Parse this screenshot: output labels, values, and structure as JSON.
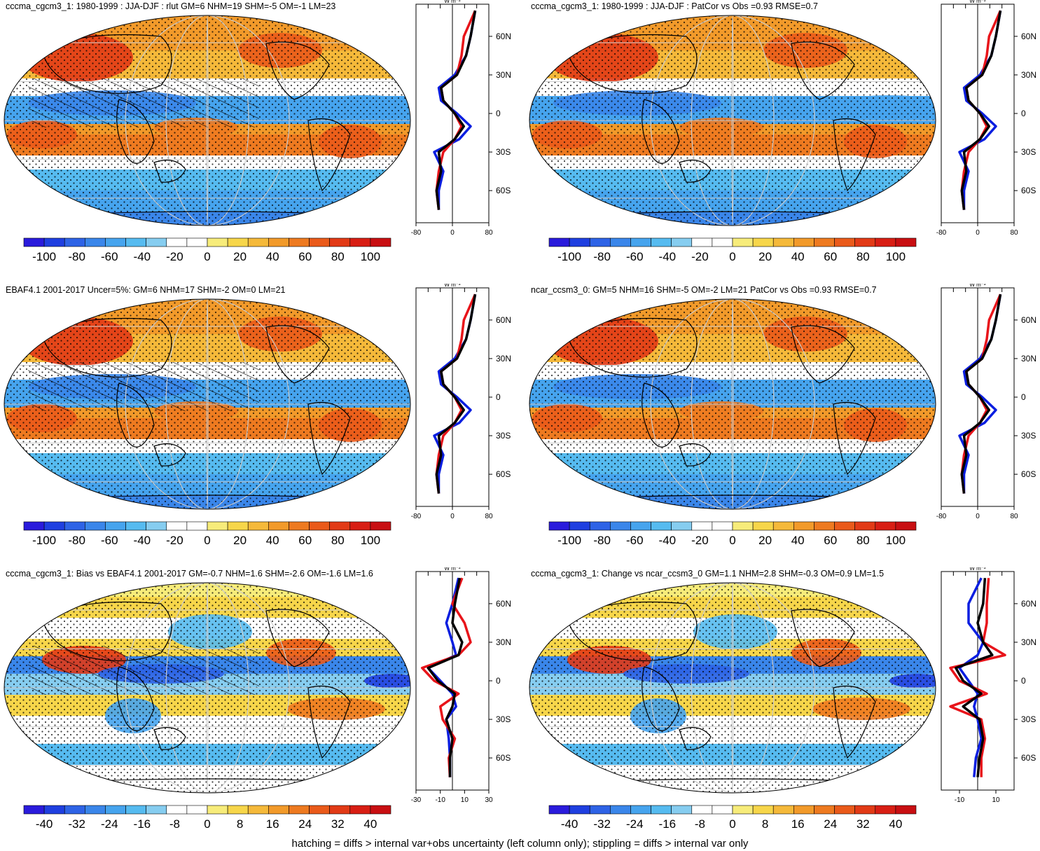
{
  "panels": [
    {
      "title": "cccma_cgcm3_1: 1980-1999 : JJA-DJF : rlut GM=6 NHM=19 SHM=-5 OM=-1 LM=23",
      "colorbar_ticks": [
        "-100",
        "-80",
        "-60",
        "-40",
        "-20",
        "0",
        "20",
        "40",
        "60",
        "80",
        "100"
      ],
      "profile_ticks": [
        "-80",
        "0",
        "80"
      ],
      "hatch": true
    },
    {
      "title": "cccma_cgcm3_1: 1980-1999 : JJA-DJF : PatCor vs Obs =0.93 RMSE=0.7",
      "colorbar_ticks": [
        "-100",
        "-80",
        "-60",
        "-40",
        "-20",
        "0",
        "20",
        "40",
        "60",
        "80",
        "100"
      ],
      "profile_ticks": [
        "-80",
        "0",
        "80"
      ],
      "hatch": false
    },
    {
      "title": "EBAF4.1 2001-2017 Uncer=5%: GM=6 NHM=17 SHM=-2 OM=0 LM=21",
      "colorbar_ticks": [
        "-100",
        "-80",
        "-60",
        "-40",
        "-20",
        "0",
        "20",
        "40",
        "60",
        "80",
        "100"
      ],
      "profile_ticks": [
        "-80",
        "0",
        "80"
      ],
      "hatch": true
    },
    {
      "title": "ncar_ccsm3_0: GM=5 NHM=16 SHM=-5 OM=-2 LM=21 PatCor vs Obs =0.93 RMSE=0.7",
      "colorbar_ticks": [
        "-100",
        "-80",
        "-60",
        "-40",
        "-20",
        "0",
        "20",
        "40",
        "60",
        "80",
        "100"
      ],
      "profile_ticks": [
        "-80",
        "0",
        "80"
      ],
      "hatch": false
    },
    {
      "title": "cccma_cgcm3_1: Bias vs EBAF4.1 2001-2017 GM=-0.7 NHM=1.6 SHM=-2.6 OM=-1.6 LM=1.6",
      "colorbar_ticks": [
        "-40",
        "-32",
        "-24",
        "-16",
        "-8",
        "0",
        "8",
        "16",
        "24",
        "32",
        "40"
      ],
      "profile_ticks": [
        "-30",
        "-10",
        "10",
        "30"
      ],
      "hatch": true
    },
    {
      "title": "cccma_cgcm3_1: Change vs ncar_ccsm3_0 GM=1.1 NHM=2.8 SHM=-0.3 OM=0.9 LM=1.5",
      "colorbar_ticks": [
        "-40",
        "-32",
        "-24",
        "-16",
        "-8",
        "0",
        "8",
        "16",
        "24",
        "32",
        "40"
      ],
      "profile_ticks": [
        "-10",
        "10"
      ],
      "hatch": false
    }
  ],
  "profile_unit": "W m⁻²",
  "lat_ticks": [
    "60N",
    "30N",
    "0",
    "30S",
    "60S"
  ],
  "footer": "hatching = diffs > internal var+obs uncertainty (left column only); stippling = diffs > internal var only",
  "colors": {
    "palette": [
      "#2a1bdc",
      "#1f3fe0",
      "#2e63e6",
      "#3a86ea",
      "#46a4ee",
      "#56bbf0",
      "#86cdf0",
      "#ffffff",
      "#ffffff",
      "#f7ec7a",
      "#f7d64a",
      "#f5b93a",
      "#f29a2a",
      "#ee7a20",
      "#ea5a1a",
      "#e23a16",
      "#d81e14",
      "#c80f12"
    ],
    "obs_line": "#0a1ee0",
    "model_line": "#e8141a",
    "ref_line": "#000000"
  },
  "chart_data": [
    {
      "type": "heatmap",
      "title": "cccma_cgcm3_1: 1980-1999 : JJA-DJF : rlut GM=6 NHM=19 SHM=-5 OM=-1 LM=23",
      "colorbar_range": [
        -100,
        100
      ],
      "zonal_mean_profile": {
        "lat": [
          80,
          60,
          45,
          30,
          20,
          10,
          0,
          -10,
          -20,
          -30,
          -45,
          -60,
          -75
        ],
        "series": [
          {
            "values": [
              50,
              40,
              30,
              5,
              -30,
              -25,
              10,
              40,
              15,
              -40,
              -20,
              -30,
              -30
            ]
          },
          {
            "values": [
              50,
              25,
              20,
              10,
              -25,
              -20,
              5,
              20,
              5,
              -20,
              -30,
              -35,
              -30
            ]
          },
          {
            "values": [
              50,
              40,
              30,
              10,
              -25,
              -20,
              5,
              25,
              5,
              -30,
              -25,
              -35,
              -30
            ]
          }
        ],
        "xlim": [
          -80,
          80
        ]
      }
    },
    {
      "type": "heatmap",
      "title": "cccma_cgcm3_1: 1980-1999 : JJA-DJF : PatCor vs Obs =0.93 RMSE=0.7",
      "colorbar_range": [
        -100,
        100
      ],
      "zonal_mean_profile": {
        "lat": [
          80,
          60,
          45,
          30,
          20,
          10,
          0,
          -10,
          -20,
          -30,
          -45,
          -60,
          -75
        ],
        "series": [
          {
            "values": [
              50,
              40,
              30,
              5,
              -30,
              -25,
              10,
              40,
              15,
              -40,
              -20,
              -30,
              -30
            ]
          },
          {
            "values": [
              50,
              25,
              20,
              10,
              -25,
              -20,
              5,
              20,
              5,
              -20,
              -30,
              -35,
              -30
            ]
          },
          {
            "values": [
              50,
              40,
              30,
              10,
              -25,
              -20,
              5,
              25,
              5,
              -30,
              -25,
              -35,
              -30
            ]
          }
        ],
        "xlim": [
          -80,
          80
        ]
      }
    },
    {
      "type": "heatmap",
      "title": "EBAF4.1 2001-2017 Uncer=5%: GM=6 NHM=17 SHM=-2 OM=0 LM=21",
      "colorbar_range": [
        -100,
        100
      ],
      "zonal_mean_profile": {
        "lat": [
          80,
          60,
          45,
          30,
          20,
          10,
          0,
          -10,
          -20,
          -30,
          -45,
          -60,
          -75
        ],
        "series": [
          {
            "values": [
              50,
              40,
              30,
              5,
              -30,
              -25,
              10,
              40,
              15,
              -40,
              -20,
              -30,
              -30
            ]
          },
          {
            "values": [
              50,
              25,
              20,
              10,
              -25,
              -20,
              5,
              20,
              5,
              -20,
              -30,
              -35,
              -30
            ]
          },
          {
            "values": [
              50,
              40,
              30,
              10,
              -25,
              -20,
              5,
              25,
              5,
              -30,
              -25,
              -35,
              -30
            ]
          }
        ],
        "xlim": [
          -80,
          80
        ]
      }
    },
    {
      "type": "heatmap",
      "title": "ncar_ccsm3_0: GM=5 NHM=16 SHM=-5 OM=-2 LM=21 PatCor vs Obs =0.93 RMSE=0.7",
      "colorbar_range": [
        -100,
        100
      ],
      "zonal_mean_profile": {
        "lat": [
          80,
          60,
          45,
          30,
          20,
          10,
          0,
          -10,
          -20,
          -30,
          -45,
          -60,
          -75
        ],
        "series": [
          {
            "values": [
              50,
              40,
              30,
              5,
              -30,
              -25,
              10,
              40,
              15,
              -40,
              -20,
              -30,
              -30
            ]
          },
          {
            "values": [
              50,
              25,
              20,
              10,
              -25,
              -20,
              5,
              20,
              5,
              -20,
              -30,
              -35,
              -30
            ]
          },
          {
            "values": [
              50,
              40,
              30,
              10,
              -25,
              -20,
              5,
              25,
              5,
              -30,
              -25,
              -35,
              -30
            ]
          }
        ],
        "xlim": [
          -80,
          80
        ]
      }
    },
    {
      "type": "heatmap",
      "title": "cccma_cgcm3_1: Bias vs EBAF4.1 2001-2017 GM=-0.7 NHM=1.6 SHM=-2.6 OM=-1.6 LM=1.6",
      "colorbar_range": [
        -40,
        40
      ],
      "zonal_mean_profile": {
        "lat": [
          80,
          60,
          45,
          30,
          20,
          10,
          0,
          -10,
          -20,
          -30,
          -45,
          -60,
          -75
        ],
        "series": [
          {
            "values": [
              5,
              0,
              -5,
              0,
              3,
              -20,
              -10,
              0,
              3,
              -5,
              -3,
              -2,
              -2
            ]
          },
          {
            "values": [
              8,
              0,
              10,
              15,
              5,
              -25,
              -15,
              5,
              -10,
              -8,
              2,
              -3,
              -2
            ]
          },
          {
            "values": [
              6,
              2,
              0,
              8,
              5,
              -20,
              -12,
              2,
              0,
              -5,
              0,
              -2,
              -2
            ]
          }
        ],
        "xlim": [
          -30,
          30
        ]
      }
    },
    {
      "type": "heatmap",
      "title": "cccma_cgcm3_1: Change vs ncar_ccsm3_0 GM=1.1 NHM=2.8 SHM=-0.3 OM=0.9 LM=1.5",
      "colorbar_range": [
        -40,
        40
      ],
      "zonal_mean_profile": {
        "lat": [
          80,
          60,
          45,
          30,
          20,
          10,
          0,
          -10,
          -20,
          -30,
          -45,
          -60,
          -75
        ],
        "series": [
          {
            "values": [
              2,
              -5,
              -5,
              3,
              0,
              -10,
              -5,
              0,
              -2,
              0,
              2,
              -1,
              -2
            ]
          },
          {
            "values": [
              6,
              5,
              5,
              3,
              15,
              -15,
              -10,
              5,
              -15,
              2,
              4,
              2,
              2
            ]
          },
          {
            "values": [
              4,
              3,
              0,
              3,
              8,
              -12,
              -8,
              2,
              -8,
              1,
              3,
              1,
              0
            ]
          }
        ],
        "xlim": [
          -20,
          20
        ]
      }
    }
  ]
}
